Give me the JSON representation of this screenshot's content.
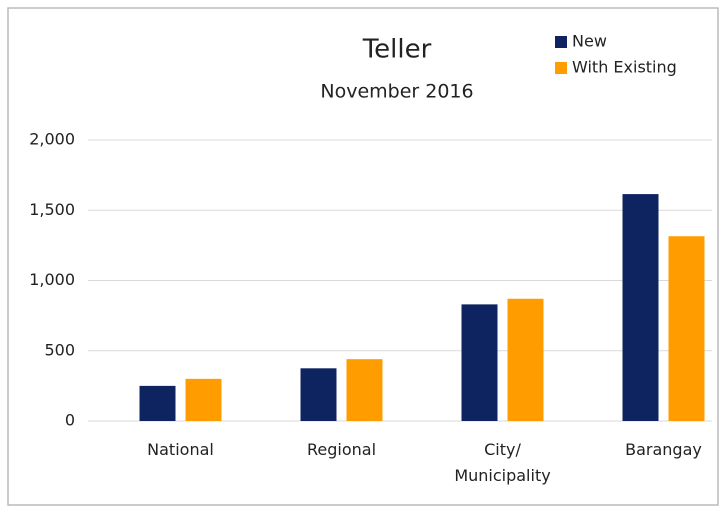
{
  "chart_data": {
    "type": "bar",
    "title": "Teller",
    "subtitle": "November 2016",
    "categories": [
      "National",
      "Regional",
      "City/ Municipality",
      "Barangay"
    ],
    "series": [
      {
        "name": "New",
        "color": "#0e2461",
        "values": [
          250,
          375,
          830,
          1615
        ]
      },
      {
        "name": "With Existing",
        "color": "#ff9c00",
        "values": [
          300,
          440,
          870,
          1315
        ]
      }
    ],
    "ylim": [
      0,
      2000
    ],
    "yticks": [
      0,
      500,
      {
        "value": 1000,
        "label": "1,000"
      },
      {
        "value": 1500,
        "label": "1,500"
      },
      {
        "value": 2000,
        "label": "2,000"
      }
    ],
    "grid": true,
    "legend": "top-right"
  }
}
